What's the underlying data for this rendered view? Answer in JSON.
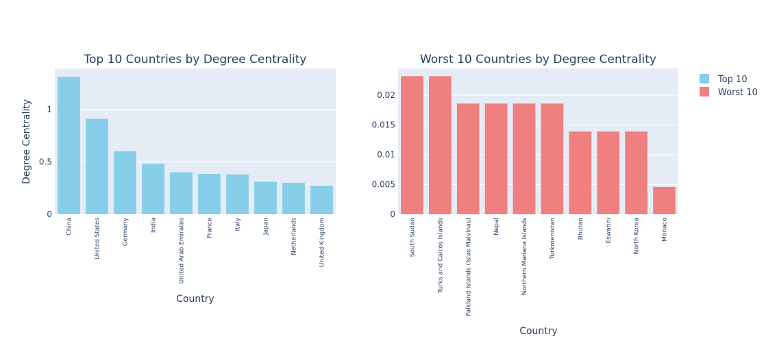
{
  "colors": {
    "plot_bg": "#e5ecf6",
    "grid": "#ffffff",
    "text": "#2a3f5f",
    "top_bar": "#87ceeb",
    "worst_bar": "#f08080"
  },
  "legend": {
    "placement": "top-right",
    "items": [
      {
        "label": "Top 10",
        "color": "#87ceeb"
      },
      {
        "label": "Worst 10",
        "color": "#f08080"
      }
    ]
  },
  "chart_data": [
    {
      "type": "bar",
      "title": "Top 10 Countries by Degree Centrality",
      "xlabel": "Country",
      "ylabel": "Degree Centrality",
      "series_name": "Top 10",
      "categories": [
        "China",
        "United States",
        "Germany",
        "India",
        "United Arab Emirates",
        "France",
        "Italy",
        "Japan",
        "Netherlands",
        "United Kingdom"
      ],
      "values": [
        1.31,
        0.91,
        0.6,
        0.48,
        0.4,
        0.385,
        0.38,
        0.31,
        0.3,
        0.27
      ],
      "ylim": [
        0,
        1.39
      ],
      "yticks": [
        0,
        0.5,
        1
      ],
      "ytick_labels": [
        "0",
        "0.5",
        "1"
      ],
      "grid": true
    },
    {
      "type": "bar",
      "title": "Worst 10 Countries by Degree Centrality",
      "xlabel": "Country",
      "ylabel": "",
      "series_name": "Worst 10",
      "categories": [
        "South Sudan",
        "Turks and Caicos Islands",
        "Falkland Islands (Islas Malvinas)",
        "Nepal",
        "Northern Mariana Islands",
        "Turkmenistan",
        "Bhutan",
        "Eswatini",
        "North Korea",
        "Monaco"
      ],
      "values": [
        0.0232,
        0.0232,
        0.0186,
        0.0186,
        0.0186,
        0.0186,
        0.0139,
        0.0139,
        0.0139,
        0.0046
      ],
      "ylim": [
        0,
        0.0245
      ],
      "yticks": [
        0,
        0.005,
        0.01,
        0.015,
        0.02
      ],
      "ytick_labels": [
        "0",
        "0.005",
        "0.01",
        "0.015",
        "0.02"
      ],
      "grid": true
    }
  ]
}
